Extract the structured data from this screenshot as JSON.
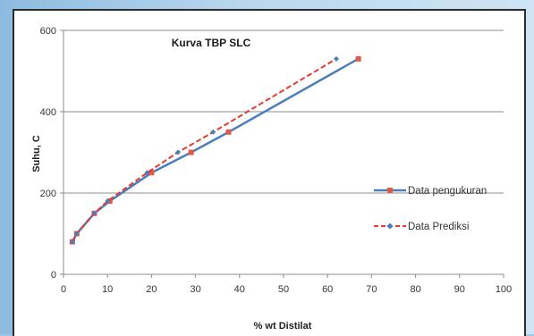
{
  "chart_data": {
    "type": "line",
    "title": "Kurva TBP SLC",
    "xlabel": "% wt Distilat",
    "ylabel": "Suhu, C",
    "xlim": [
      0,
      100
    ],
    "ylim": [
      0,
      600
    ],
    "x_ticks": [
      "0",
      "10",
      "20",
      "30",
      "40",
      "50",
      "60",
      "70",
      "80",
      "90",
      "100"
    ],
    "y_ticks": [
      "0",
      "200",
      "400",
      "600"
    ],
    "grid": "horizontal",
    "legend_position": "right",
    "series": [
      {
        "name": "Data pengukuran",
        "color": "#4a7ebb",
        "marker_color": "#e05a4a",
        "line_style": "solid",
        "marker": "square",
        "x": [
          2,
          3,
          7,
          10.5,
          20,
          29,
          37.5,
          67
        ],
        "y": [
          80,
          100,
          150,
          180,
          250,
          300,
          350,
          530
        ]
      },
      {
        "name": "Data Prediksi",
        "color": "#e5392d",
        "marker_color": "#4a7ebb",
        "line_style": "dashed",
        "marker": "diamond",
        "x": [
          2,
          3,
          7,
          10,
          19,
          26,
          34,
          62
        ],
        "y": [
          80,
          100,
          150,
          180,
          250,
          300,
          350,
          530
        ]
      }
    ]
  }
}
